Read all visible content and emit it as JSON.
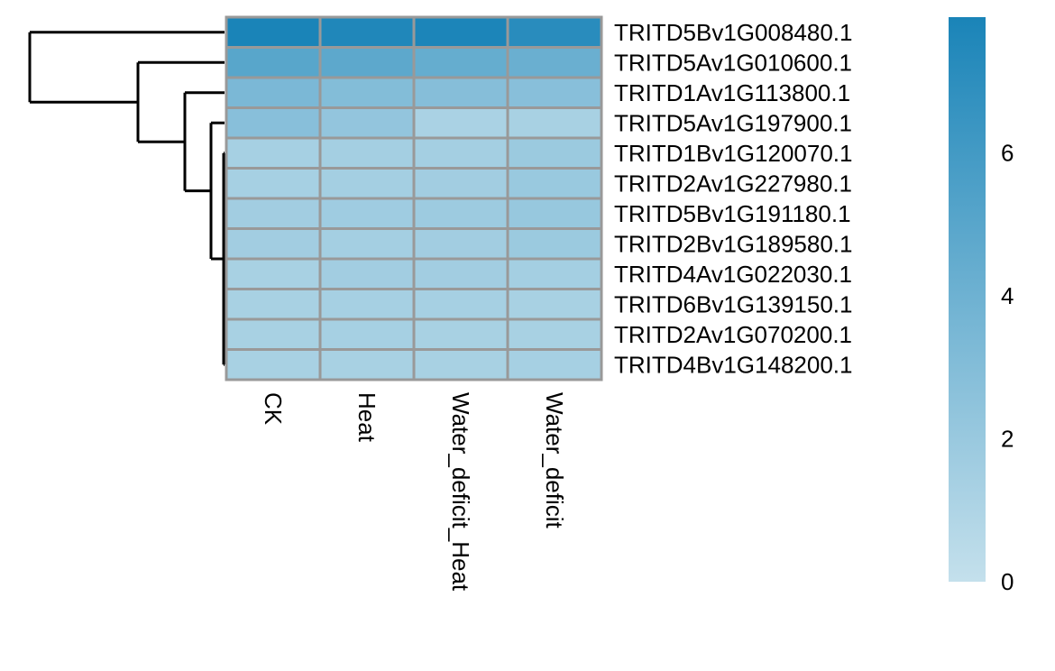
{
  "chart_data": {
    "type": "heatmap",
    "title": "",
    "columns": [
      "CK",
      "Heat",
      "Water_deficit_Heat",
      "Water_deficit"
    ],
    "rows": [
      "TRITD5Bv1G008480.1",
      "TRITD5Av1G010600.1",
      "TRITD1Av1G113800.1",
      "TRITD5Av1G197900.1",
      "TRITD1Bv1G120070.1",
      "TRITD2Av1G227980.1",
      "TRITD5Bv1G191180.1",
      "TRITD2Bv1G189580.1",
      "TRITD4Av1G022030.1",
      "TRITD6Bv1G139150.1",
      "TRITD2Av1G070200.1",
      "TRITD4Bv1G148200.1"
    ],
    "values": [
      [
        7.9,
        7.6,
        7.8,
        7.2
      ],
      [
        5.0,
        4.8,
        4.4,
        4.2
      ],
      [
        3.4,
        3.0,
        2.9,
        2.8
      ],
      [
        2.8,
        2.3,
        1.2,
        1.3
      ],
      [
        1.4,
        1.5,
        1.5,
        1.9
      ],
      [
        1.4,
        1.5,
        1.6,
        2.0
      ],
      [
        1.6,
        1.7,
        1.8,
        2.1
      ],
      [
        1.6,
        1.5,
        1.6,
        1.9
      ],
      [
        1.3,
        1.6,
        1.6,
        1.5
      ],
      [
        1.3,
        1.4,
        1.4,
        1.3
      ],
      [
        1.3,
        1.4,
        1.3,
        1.3
      ],
      [
        1.3,
        1.3,
        1.3,
        1.4
      ]
    ],
    "colorbar": {
      "min": 0,
      "max": 7.9,
      "ticks": [
        0,
        2,
        4,
        6
      ],
      "low_color": "#c4e0ec",
      "high_color": "#1a84b8"
    },
    "row_dendrogram": true,
    "cell_border_color": "#999999"
  }
}
